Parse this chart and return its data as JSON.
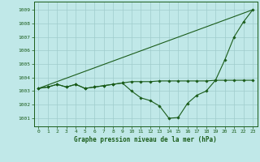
{
  "title": "Graphe pression niveau de la mer (hPa)",
  "bg_color": "#c0e8e8",
  "grid_color": "#a0cccc",
  "line_color": "#1a5c1a",
  "marker_color": "#1a5c1a",
  "x_ticks": [
    0,
    1,
    2,
    3,
    4,
    5,
    6,
    7,
    8,
    9,
    10,
    11,
    12,
    13,
    14,
    15,
    16,
    17,
    18,
    19,
    20,
    21,
    22,
    23
  ],
  "y_ticks": [
    1001,
    1002,
    1003,
    1004,
    1005,
    1006,
    1007,
    1008,
    1009
  ],
  "ylim": [
    1000.4,
    1009.6
  ],
  "xlim": [
    -0.5,
    23.5
  ],
  "line1_x": [
    0,
    1,
    2,
    3,
    4,
    5,
    6,
    7,
    8,
    9,
    10,
    11,
    12,
    13,
    14,
    15,
    16,
    17,
    18,
    19,
    20,
    21,
    22,
    23
  ],
  "line1_y": [
    1003.2,
    1003.3,
    1003.5,
    1003.3,
    1003.5,
    1003.2,
    1003.3,
    1003.4,
    1003.5,
    1003.6,
    1003.0,
    1002.5,
    1002.3,
    1001.9,
    1001.0,
    1001.05,
    1002.1,
    1002.7,
    1003.0,
    1003.8,
    1005.3,
    1007.0,
    1008.1,
    1009.0
  ],
  "line2_x": [
    0,
    1,
    2,
    3,
    4,
    5,
    6,
    7,
    8,
    9,
    10,
    11,
    12,
    13,
    14,
    15,
    16,
    17,
    18,
    19,
    20,
    21,
    22,
    23
  ],
  "line2_y": [
    1003.2,
    1003.3,
    1003.5,
    1003.3,
    1003.5,
    1003.2,
    1003.3,
    1003.4,
    1003.5,
    1003.6,
    1003.7,
    1003.7,
    1003.7,
    1003.75,
    1003.75,
    1003.75,
    1003.75,
    1003.75,
    1003.75,
    1003.8,
    1003.8,
    1003.8,
    1003.8,
    1003.8
  ],
  "line3_x": [
    0,
    23
  ],
  "line3_y": [
    1003.2,
    1009.0
  ]
}
